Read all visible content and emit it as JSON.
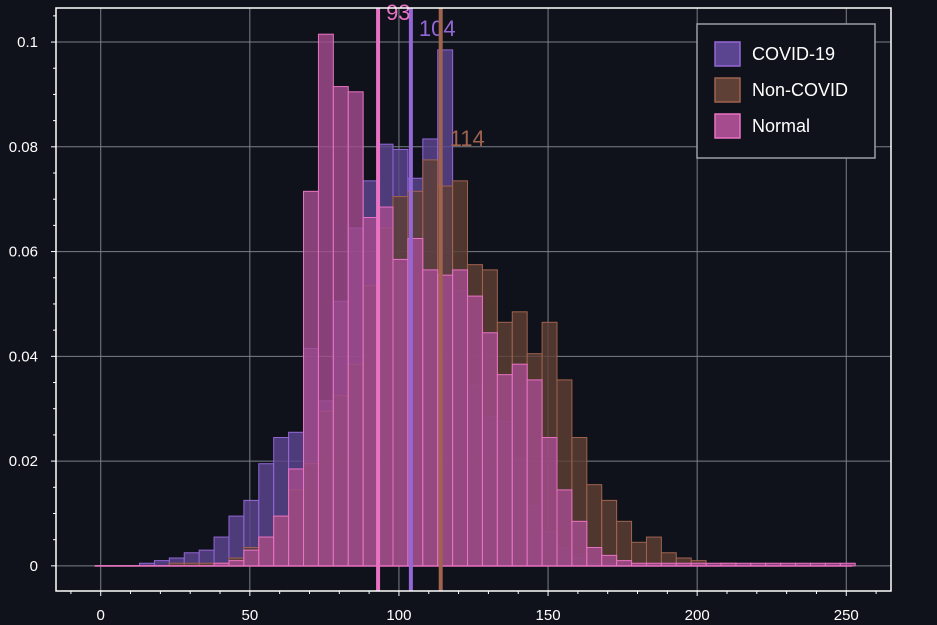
{
  "chart_data": {
    "type": "histogram",
    "title": "",
    "xlabel": "",
    "ylabel": "",
    "xlim": [
      -15,
      265
    ],
    "ylim": [
      -0.0048,
      0.1065
    ],
    "grid": true,
    "legend_position": "top-right",
    "x_ticks": [
      0,
      50,
      100,
      150,
      200,
      250
    ],
    "y_ticks": [
      0,
      0.02,
      0.04,
      0.06,
      0.08,
      0.1
    ],
    "y_tick_labels": [
      "0",
      "0.02",
      "0.04",
      "0.06",
      "0.08",
      "0.1"
    ],
    "bin_width": 5,
    "series": [
      {
        "name": "COVID-19",
        "color": "#9467d6",
        "fill": "#5b4490",
        "mean": 104,
        "mean_label": "104",
        "bins": [
          [
            13,
            0.0005
          ],
          [
            18,
            0.001
          ],
          [
            23,
            0.0015
          ],
          [
            28,
            0.0025
          ],
          [
            33,
            0.003
          ],
          [
            38,
            0.0055
          ],
          [
            43,
            0.0095
          ],
          [
            48,
            0.0125
          ],
          [
            53,
            0.0195
          ],
          [
            58,
            0.0245
          ],
          [
            63,
            0.0255
          ],
          [
            68,
            0.0415
          ],
          [
            73,
            0.0315
          ],
          [
            78,
            0.0505
          ],
          [
            83,
            0.0645
          ],
          [
            88,
            0.0735
          ],
          [
            93,
            0.0805
          ],
          [
            98,
            0.0795
          ],
          [
            103,
            0.074
          ],
          [
            108,
            0.0815
          ],
          [
            113,
            0.0985
          ],
          [
            118,
            0.0525
          ],
          [
            123,
            0.0345
          ],
          [
            128,
            0.0285
          ],
          [
            133,
            0.0275
          ],
          [
            138,
            0.0205
          ],
          [
            143,
            0.0115
          ],
          [
            148,
            0.0065
          ],
          [
            153,
            0.0035
          ],
          [
            158,
            0.0015
          ],
          [
            163,
            0.0005
          ],
          [
            168,
            0.0005
          ]
        ]
      },
      {
        "name": "Non-COVID",
        "color": "#a0634e",
        "fill": "#5e4036",
        "mean": 114,
        "mean_label": "114",
        "bins": [
          [
            23,
            0.0005
          ],
          [
            28,
            0.0005
          ],
          [
            33,
            0.0005
          ],
          [
            38,
            0.0005
          ],
          [
            43,
            0.0015
          ],
          [
            48,
            0.0035
          ],
          [
            53,
            0.0055
          ],
          [
            58,
            0.0095
          ],
          [
            63,
            0.0145
          ],
          [
            68,
            0.0195
          ],
          [
            73,
            0.0295
          ],
          [
            78,
            0.0325
          ],
          [
            83,
            0.0385
          ],
          [
            88,
            0.0535
          ],
          [
            93,
            0.0645
          ],
          [
            98,
            0.0705
          ],
          [
            103,
            0.0715
          ],
          [
            108,
            0.0775
          ],
          [
            113,
            0.0725
          ],
          [
            118,
            0.0735
          ],
          [
            123,
            0.0575
          ],
          [
            128,
            0.0565
          ],
          [
            133,
            0.0465
          ],
          [
            138,
            0.0485
          ],
          [
            143,
            0.0405
          ],
          [
            148,
            0.0465
          ],
          [
            153,
            0.0355
          ],
          [
            158,
            0.0245
          ],
          [
            163,
            0.0155
          ],
          [
            168,
            0.0125
          ],
          [
            173,
            0.0085
          ],
          [
            178,
            0.0045
          ],
          [
            183,
            0.0055
          ],
          [
            188,
            0.0025
          ],
          [
            193,
            0.0015
          ],
          [
            198,
            0.001
          ],
          [
            208,
            0.0005
          ]
        ]
      },
      {
        "name": "Normal",
        "color": "#ea72c4",
        "fill": "#a44c8e",
        "mean": 93,
        "mean_label": "93",
        "bins": [
          [
            38,
            0.0005
          ],
          [
            43,
            0.001
          ],
          [
            48,
            0.003
          ],
          [
            53,
            0.0055
          ],
          [
            58,
            0.0095
          ],
          [
            63,
            0.0185
          ],
          [
            68,
            0.0715
          ],
          [
            73,
            0.1015
          ],
          [
            78,
            0.0915
          ],
          [
            83,
            0.0905
          ],
          [
            88,
            0.0665
          ],
          [
            93,
            0.0685
          ],
          [
            98,
            0.0585
          ],
          [
            103,
            0.0625
          ],
          [
            108,
            0.0565
          ],
          [
            113,
            0.0555
          ],
          [
            118,
            0.0565
          ],
          [
            123,
            0.0515
          ],
          [
            128,
            0.0445
          ],
          [
            133,
            0.0365
          ],
          [
            138,
            0.0385
          ],
          [
            143,
            0.0355
          ],
          [
            148,
            0.0245
          ],
          [
            153,
            0.0145
          ],
          [
            158,
            0.0085
          ],
          [
            163,
            0.0035
          ],
          [
            168,
            0.002
          ],
          [
            173,
            0.001
          ],
          [
            178,
            0.0005
          ],
          [
            183,
            0.0005
          ],
          [
            188,
            0.0005
          ],
          [
            193,
            0.0005
          ],
          [
            198,
            0.0005
          ],
          [
            203,
            0.0005
          ],
          [
            208,
            0.0005
          ],
          [
            213,
            0.0005
          ],
          [
            218,
            0.0005
          ],
          [
            223,
            0.0005
          ],
          [
            228,
            0.0005
          ],
          [
            233,
            0.0005
          ],
          [
            238,
            0.0005
          ],
          [
            243,
            0.0005
          ],
          [
            248,
            0.0005
          ]
        ]
      }
    ]
  }
}
